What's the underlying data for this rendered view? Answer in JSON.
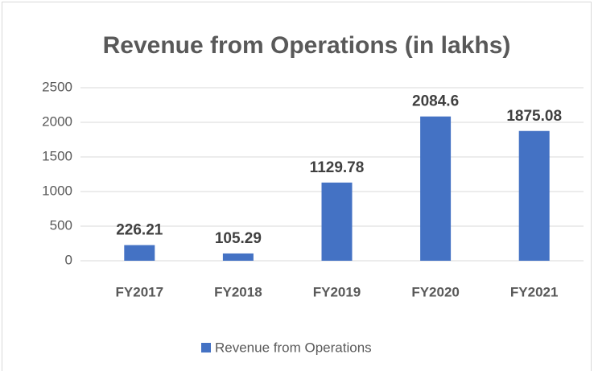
{
  "chart_data": {
    "type": "bar",
    "title": "Revenue from Operations (in lakhs)",
    "categories": [
      "FY2017",
      "FY2018",
      "FY2019",
      "FY2020",
      "FY2021"
    ],
    "series": [
      {
        "name": "Revenue from Operations",
        "color": "#4472c4",
        "values": [
          226.21,
          105.29,
          1129.78,
          2084.6,
          1875.08
        ]
      }
    ],
    "ylim": [
      0,
      2500
    ],
    "yticks": [
      0,
      500,
      1000,
      1500,
      2000,
      2500
    ],
    "grid": true,
    "legend": "bottom"
  }
}
